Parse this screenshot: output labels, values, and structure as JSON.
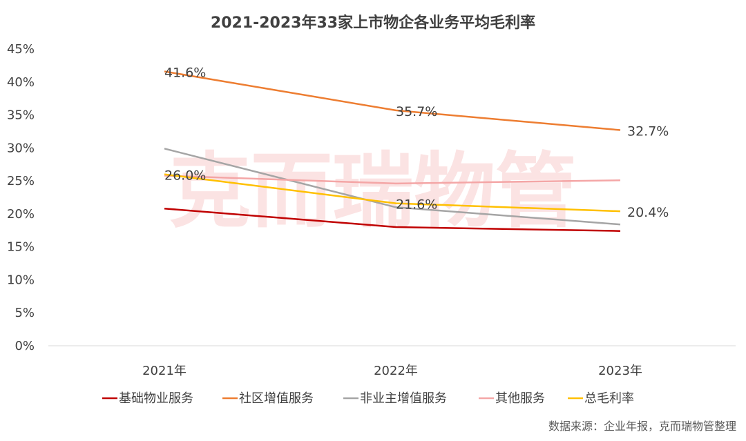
{
  "chart_data": {
    "type": "line",
    "title": "2021-2023年33家上市物企各业务平均毛利率",
    "categories": [
      "2021年",
      "2022年",
      "2023年"
    ],
    "y_ticks": [
      "0%",
      "5%",
      "10%",
      "15%",
      "20%",
      "25%",
      "30%",
      "35%",
      "40%",
      "45%"
    ],
    "ylim": [
      0,
      45
    ],
    "y_unit": "%",
    "grid": false,
    "legend_position": "bottom",
    "series": [
      {
        "name": "基础物业服务",
        "values": [
          20.8,
          18.0,
          17.4
        ],
        "color": "#c00000",
        "labels": [
          "",
          "",
          ""
        ]
      },
      {
        "name": "社区增值服务",
        "values": [
          41.6,
          35.7,
          32.7
        ],
        "color": "#ed7d31",
        "labels": [
          "41.6%",
          "35.7%",
          "32.7%"
        ]
      },
      {
        "name": "非业主增值服务",
        "values": [
          29.9,
          21.0,
          18.4
        ],
        "color": "#a5a5a5",
        "labels": [
          "",
          "",
          ""
        ]
      },
      {
        "name": "其他服务",
        "values": [
          25.8,
          24.6,
          25.1
        ],
        "color": "#f4a6a6",
        "labels": [
          "",
          "",
          ""
        ]
      },
      {
        "name": "总毛利率",
        "values": [
          26.0,
          21.6,
          20.4
        ],
        "color": "#ffc000",
        "labels": [
          "26.0%",
          "21.6%",
          "20.4%"
        ]
      }
    ]
  },
  "watermark": "克而瑞物管",
  "source": "数据来源：企业年报，克而瑞物管整理"
}
